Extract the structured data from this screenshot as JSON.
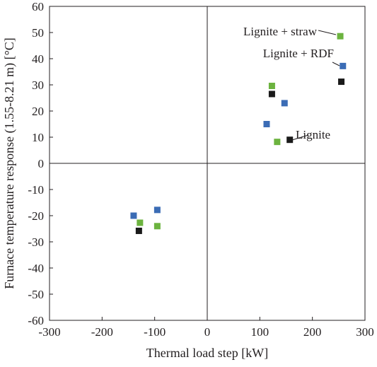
{
  "chart_data": {
    "type": "scatter",
    "title": "",
    "xlabel": "Thermal load step [kW]",
    "ylabel": "Furnace temperature response (1.55-8.21 m) [°C]",
    "xlim": [
      -300,
      300
    ],
    "ylim": [
      -60,
      60
    ],
    "xticks": [
      -300,
      -200,
      -100,
      0,
      100,
      200,
      300
    ],
    "yticks": [
      -60,
      -50,
      -40,
      -30,
      -20,
      -10,
      0,
      10,
      20,
      30,
      40,
      50,
      60
    ],
    "grid": false,
    "zero_lines": true,
    "series": [
      {
        "name": "Lignite",
        "color": "#1a1a1a",
        "points": [
          {
            "x": 157,
            "y": 9
          },
          {
            "x": 123,
            "y": 26.5
          },
          {
            "x": 255,
            "y": 31.2
          },
          {
            "x": -130,
            "y": -25.8
          }
        ]
      },
      {
        "name": "Lignite + RDF",
        "color": "#3b6cb5",
        "points": [
          {
            "x": 113,
            "y": 15
          },
          {
            "x": 147,
            "y": 23
          },
          {
            "x": 258,
            "y": 37.2
          },
          {
            "x": -140,
            "y": -20
          },
          {
            "x": -95,
            "y": -17.8
          }
        ]
      },
      {
        "name": "Lignite + straw",
        "color": "#6cb33f",
        "points": [
          {
            "x": 133,
            "y": 8.2
          },
          {
            "x": 123,
            "y": 29.6
          },
          {
            "x": 253,
            "y": 48.6
          },
          {
            "x": -128,
            "y": -22.7
          },
          {
            "x": -95,
            "y": -24
          }
        ]
      }
    ],
    "annotations": [
      {
        "text": "Lignite + straw",
        "series": "Lignite + straw",
        "point_x": 253,
        "point_y": 48.6
      },
      {
        "text": "Lignite + RDF",
        "series": "Lignite + RDF",
        "point_x": 258,
        "point_y": 37.2
      },
      {
        "text": "Lignite",
        "series": "Lignite",
        "point_x": 157,
        "point_y": 9
      }
    ]
  }
}
